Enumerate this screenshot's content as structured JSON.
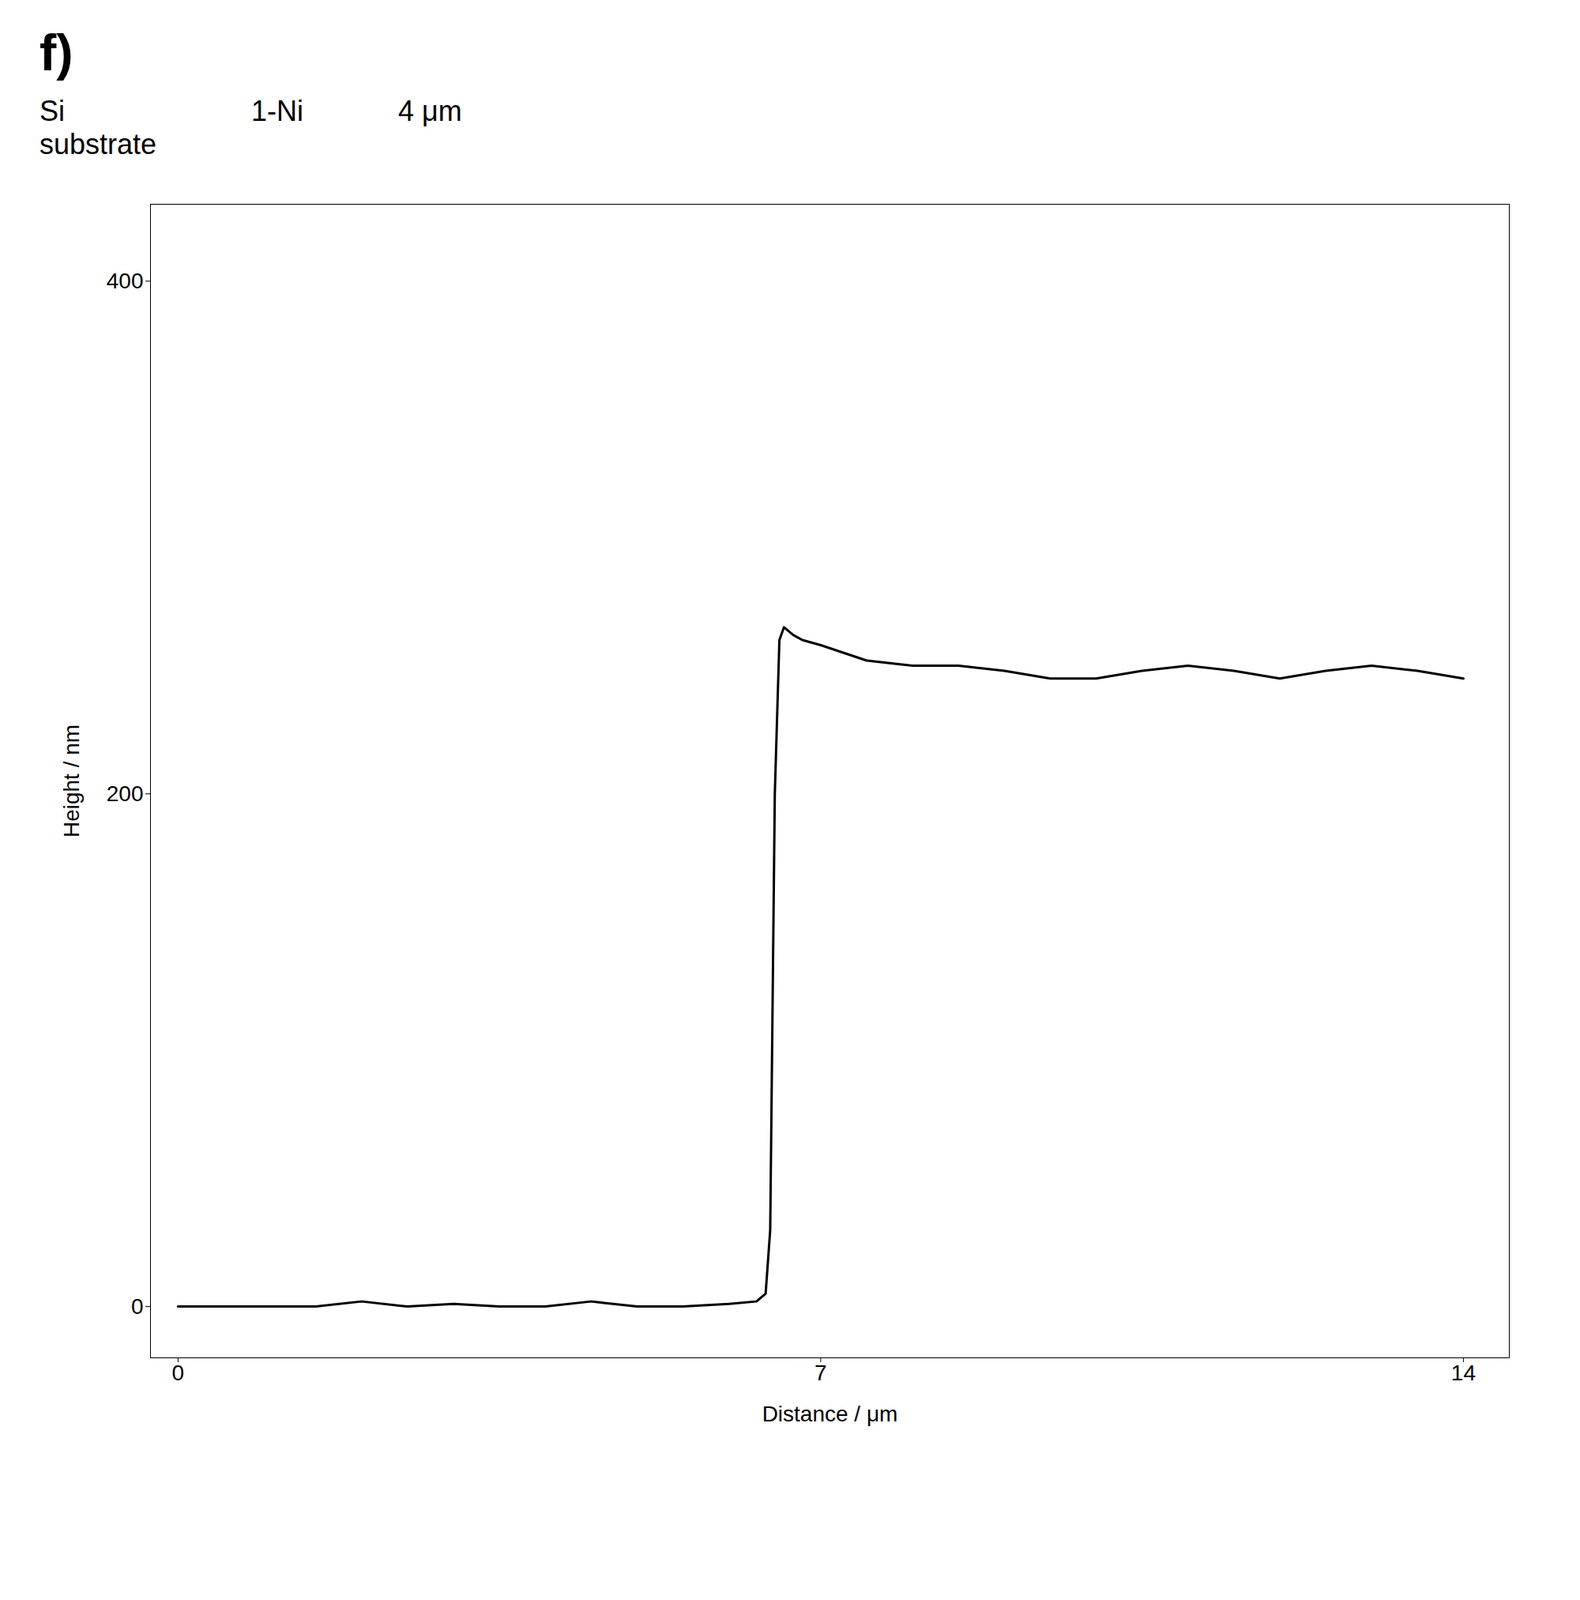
{
  "chart_data": {
    "type": "line",
    "title": "f)",
    "annotations": [
      "Si\nsubstrate",
      "1-Ni",
      "4 μm"
    ],
    "x": [
      0,
      0.5,
      1.0,
      1.5,
      2.0,
      2.5,
      3.0,
      3.5,
      4.0,
      4.5,
      5.0,
      5.5,
      6.0,
      6.3,
      6.4,
      6.45,
      6.5,
      6.55,
      6.6,
      6.7,
      6.8,
      7.0,
      7.5,
      8.0,
      8.5,
      9.0,
      9.5,
      10.0,
      10.5,
      11.0,
      11.5,
      12.0,
      12.5,
      13.0,
      13.5,
      14.0
    ],
    "values": [
      0,
      0,
      0,
      0,
      2,
      0,
      1,
      0,
      0,
      2,
      0,
      0,
      1,
      2,
      5,
      30,
      200,
      260,
      265,
      262,
      260,
      258,
      252,
      250,
      250,
      248,
      245,
      245,
      248,
      250,
      248,
      245,
      248,
      250,
      248,
      245
    ],
    "xlabel": "Distance / μm",
    "ylabel": "Height / nm",
    "xlim": [
      -0.3,
      14.5
    ],
    "ylim": [
      -20,
      430
    ],
    "xticks": [
      0,
      7,
      14
    ],
    "yticks": [
      0,
      200,
      400
    ]
  }
}
